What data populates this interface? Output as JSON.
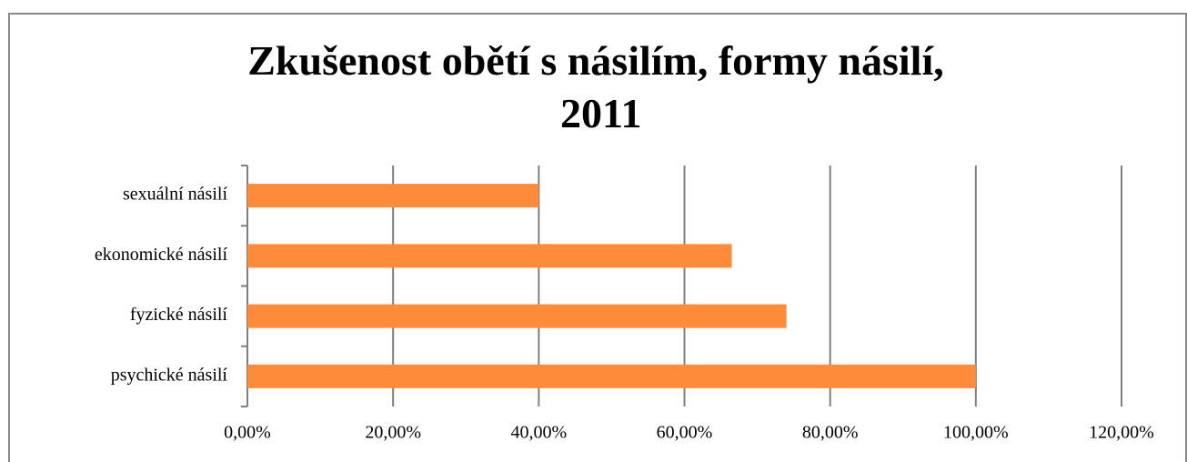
{
  "chart_data": {
    "type": "bar",
    "orientation": "horizontal",
    "title": "Zkušenost obětí s násilím, formy násilí, 2011",
    "categories": [
      "sexuální násilí",
      "ekonomické násilí",
      "fyzické násilí",
      "psychické násilí"
    ],
    "values": [
      40,
      66.5,
      74,
      100
    ],
    "color": "#fd8b3a",
    "xlim": [
      0,
      120
    ],
    "xticks": [
      {
        "value": 0,
        "label": "0,00%"
      },
      {
        "value": 20,
        "label": "20,00%"
      },
      {
        "value": 40,
        "label": "40,00%"
      },
      {
        "value": 60,
        "label": "60,00%"
      },
      {
        "value": 80,
        "label": "80,00%"
      },
      {
        "value": 100,
        "label": "100,00%"
      },
      {
        "value": 120,
        "label": "120,00%"
      }
    ],
    "grid": true
  }
}
